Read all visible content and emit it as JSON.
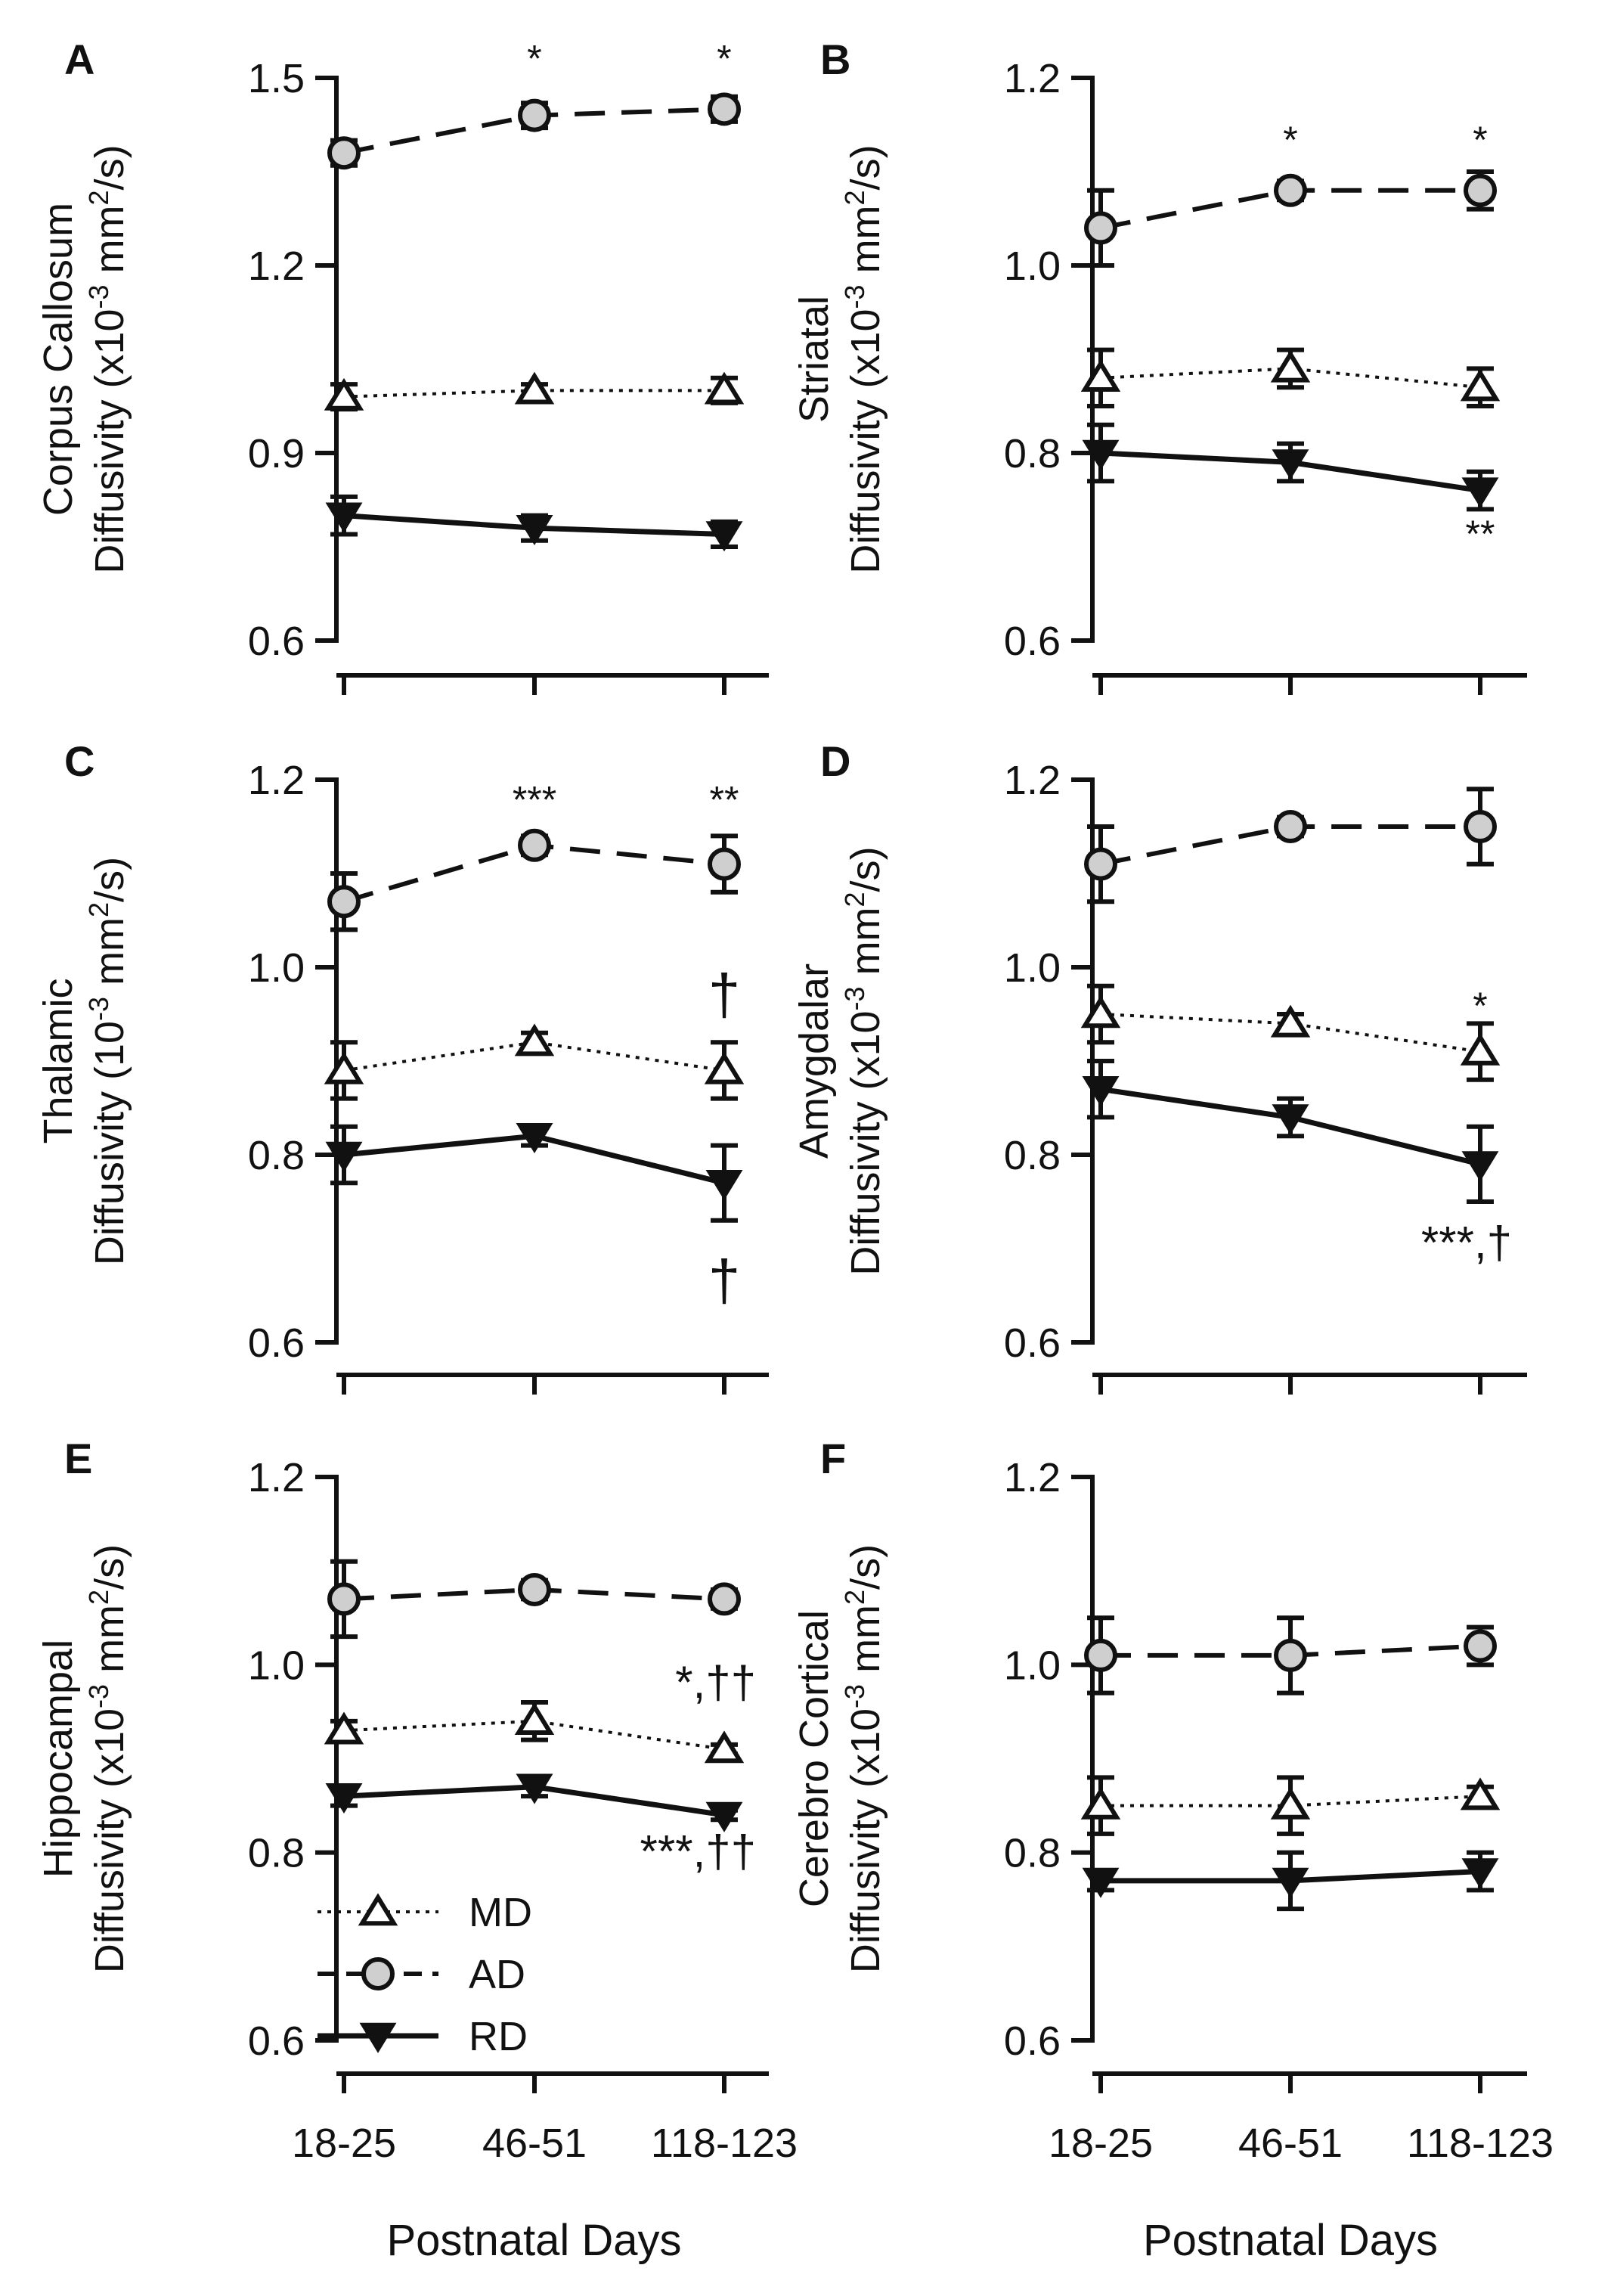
{
  "chart_data": [
    {
      "panel": "A",
      "type": "line",
      "ylabel_line1": "Corpus Callosum",
      "ylabel_line2_prefix": "Diffusivity (x10",
      "ylabel_exp": "-3",
      "ylabel_mid": " mm",
      "ylabel_exp2": "2",
      "ylabel_suffix": "/s)",
      "xlabel": "",
      "categories": [
        "18-25",
        "46-51",
        "118-123"
      ],
      "ylim": [
        0.6,
        1.5
      ],
      "yticks": [
        0.6,
        0.9,
        1.2,
        1.5
      ],
      "ytick_labels": [
        "0.6",
        "0.9",
        "1.2",
        "1.5"
      ],
      "series": [
        {
          "name": "AD",
          "values": [
            1.38,
            1.44,
            1.45
          ],
          "errors": [
            0.02,
            0.02,
            0.02
          ]
        },
        {
          "name": "MD",
          "values": [
            0.99,
            1.0,
            1.0
          ],
          "errors": [
            0.02,
            0.01,
            0.02
          ]
        },
        {
          "name": "RD",
          "values": [
            0.8,
            0.78,
            0.77
          ],
          "errors": [
            0.03,
            0.02,
            0.02
          ]
        }
      ],
      "annotations": [
        {
          "text": "*",
          "cat": 1,
          "y": 1.51,
          "kind": "sig"
        },
        {
          "text": "*",
          "cat": 2,
          "y": 1.51,
          "kind": "sig"
        }
      ]
    },
    {
      "panel": "B",
      "type": "line",
      "ylabel_line1": "Striatal",
      "ylabel_line2_prefix": "Diffusivity (x10",
      "ylabel_exp": "-3",
      "ylabel_mid": " mm",
      "ylabel_exp2": "2",
      "ylabel_suffix": "/s)",
      "xlabel": "",
      "categories": [
        "18-25",
        "46-51",
        "118-123"
      ],
      "ylim": [
        0.6,
        1.2
      ],
      "yticks": [
        0.6,
        0.8,
        1.0,
        1.2
      ],
      "ytick_labels": [
        "0.6",
        "0.8",
        "1.0",
        "1.2"
      ],
      "series": [
        {
          "name": "AD",
          "values": [
            1.04,
            1.08,
            1.08
          ],
          "errors": [
            0.04,
            0.01,
            0.02
          ]
        },
        {
          "name": "MD",
          "values": [
            0.88,
            0.89,
            0.87
          ],
          "errors": [
            0.03,
            0.02,
            0.02
          ]
        },
        {
          "name": "RD",
          "values": [
            0.8,
            0.79,
            0.76
          ],
          "errors": [
            0.03,
            0.02,
            0.02
          ]
        }
      ],
      "annotations": [
        {
          "text": "*",
          "cat": 1,
          "y": 1.12,
          "kind": "sig"
        },
        {
          "text": "*",
          "cat": 2,
          "y": 1.12,
          "kind": "sig"
        },
        {
          "text": "**",
          "cat": 2,
          "y": 0.7,
          "kind": "sig"
        }
      ]
    },
    {
      "panel": "C",
      "type": "line",
      "ylabel_line1": "Thalamic",
      "ylabel_line2_prefix": "Diffusivity (10",
      "ylabel_exp": "-3",
      "ylabel_mid": " mm",
      "ylabel_exp2": "2",
      "ylabel_suffix": "/s)",
      "xlabel": "",
      "categories": [
        "18-25",
        "46-51",
        "118-123"
      ],
      "ylim": [
        0.6,
        1.2
      ],
      "yticks": [
        0.6,
        0.8,
        1.0,
        1.2
      ],
      "ytick_labels": [
        "0.6",
        "0.8",
        "1.0",
        "1.2"
      ],
      "series": [
        {
          "name": "AD",
          "values": [
            1.07,
            1.13,
            1.11
          ],
          "errors": [
            0.03,
            0.01,
            0.03
          ]
        },
        {
          "name": "MD",
          "values": [
            0.89,
            0.92,
            0.89
          ],
          "errors": [
            0.03,
            0.01,
            0.03
          ]
        },
        {
          "name": "RD",
          "values": [
            0.8,
            0.82,
            0.77
          ],
          "errors": [
            0.03,
            0.01,
            0.04
          ]
        }
      ],
      "annotations": [
        {
          "text": "***",
          "cat": 1,
          "y": 1.165,
          "kind": "sig"
        },
        {
          "text": "**",
          "cat": 2,
          "y": 1.165,
          "kind": "sig"
        },
        {
          "text": "†",
          "cat": 2,
          "y": 0.95,
          "kind": "dagger"
        },
        {
          "text": "†",
          "cat": 2,
          "y": 0.645,
          "kind": "dagger"
        }
      ]
    },
    {
      "panel": "D",
      "type": "line",
      "ylabel_line1": "Amygdalar",
      "ylabel_line2_prefix": "Diffusivity (x10",
      "ylabel_exp": "-3",
      "ylabel_mid": " mm",
      "ylabel_exp2": "2",
      "ylabel_suffix": "/s)",
      "xlabel": "",
      "categories": [
        "18-25",
        "46-51",
        "118-123"
      ],
      "ylim": [
        0.6,
        1.2
      ],
      "yticks": [
        0.6,
        0.8,
        1.0,
        1.2
      ],
      "ytick_labels": [
        "0.6",
        "0.8",
        "1.0",
        "1.2"
      ],
      "series": [
        {
          "name": "AD",
          "values": [
            1.11,
            1.15,
            1.15
          ],
          "errors": [
            0.04,
            0.01,
            0.04
          ]
        },
        {
          "name": "MD",
          "values": [
            0.95,
            0.94,
            0.91
          ],
          "errors": [
            0.03,
            0.01,
            0.03
          ]
        },
        {
          "name": "RD",
          "values": [
            0.87,
            0.84,
            0.79
          ],
          "errors": [
            0.03,
            0.02,
            0.04
          ]
        }
      ],
      "annotations": [
        {
          "text": "*",
          "cat": 2,
          "y": 0.945,
          "kind": "sig"
        },
        {
          "text": "***,†",
          "cat": 2,
          "y": 0.69,
          "kind": "sigbig"
        }
      ]
    },
    {
      "panel": "E",
      "type": "line",
      "ylabel_line1": "Hippocampal",
      "ylabel_line2_prefix": "Diffusivity (x10",
      "ylabel_exp": "-3",
      "ylabel_mid": " mm",
      "ylabel_exp2": "2",
      "ylabel_suffix": "/s)",
      "xlabel": "Postnatal Days",
      "categories": [
        "18-25",
        "46-51",
        "118-123"
      ],
      "ylim": [
        0.6,
        1.2
      ],
      "yticks": [
        0.6,
        0.8,
        1.0,
        1.2
      ],
      "ytick_labels": [
        "0.6",
        "0.8",
        "1.0",
        "1.2"
      ],
      "series": [
        {
          "name": "AD",
          "values": [
            1.07,
            1.08,
            1.07
          ],
          "errors": [
            0.04,
            0.01,
            0.01
          ]
        },
        {
          "name": "MD",
          "values": [
            0.93,
            0.94,
            0.91
          ],
          "errors": [
            0.01,
            0.02,
            0.005
          ]
        },
        {
          "name": "RD",
          "values": [
            0.86,
            0.87,
            0.84
          ],
          "errors": [
            0.01,
            0.01,
            0.005
          ]
        }
      ],
      "annotations": [
        {
          "text": "*,††",
          "cat": 2,
          "y": 0.965,
          "kind": "sigbig"
        },
        {
          "text": "***,††",
          "cat": 2,
          "y": 0.785,
          "kind": "sigbig"
        }
      ],
      "legend": {
        "placement": "bottom-left",
        "entries": [
          "MD",
          "AD",
          "RD"
        ]
      }
    },
    {
      "panel": "F",
      "type": "line",
      "ylabel_line1": "Cerebro Cortical",
      "ylabel_line2_prefix": "Diffusivity (x10",
      "ylabel_exp": "-3",
      "ylabel_mid": " mm",
      "ylabel_exp2": "2",
      "ylabel_suffix": "/s)",
      "xlabel": "Postnatal Days",
      "categories": [
        "18-25",
        "46-51",
        "118-123"
      ],
      "ylim": [
        0.6,
        1.2
      ],
      "yticks": [
        0.6,
        0.8,
        1.0,
        1.2
      ],
      "ytick_labels": [
        "0.6",
        "0.8",
        "1.0",
        "1.2"
      ],
      "series": [
        {
          "name": "AD",
          "values": [
            1.01,
            1.01,
            1.02
          ],
          "errors": [
            0.04,
            0.04,
            0.02
          ]
        },
        {
          "name": "MD",
          "values": [
            0.85,
            0.85,
            0.86
          ],
          "errors": [
            0.03,
            0.03,
            0.01
          ]
        },
        {
          "name": "RD",
          "values": [
            0.77,
            0.77,
            0.78
          ],
          "errors": [
            0.01,
            0.03,
            0.02
          ]
        }
      ],
      "annotations": []
    }
  ]
}
